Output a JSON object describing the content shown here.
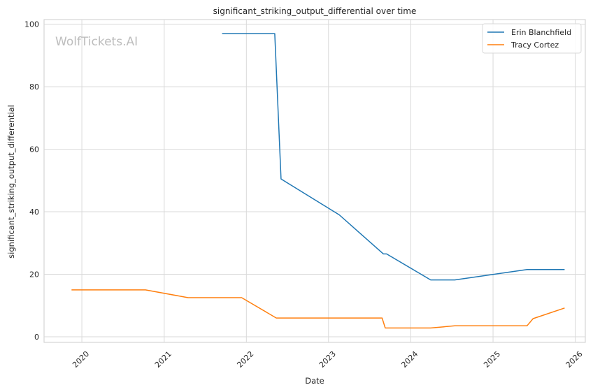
{
  "chart_data": {
    "type": "line",
    "title": "significant_striking_output_differential over time",
    "xlabel": "Date",
    "ylabel": "significant_striking_output_differential",
    "watermark": "WolfTickets.AI",
    "x_ticks": [
      "2020",
      "2021",
      "2022",
      "2023",
      "2024",
      "2025",
      "2026"
    ],
    "y_ticks": [
      0,
      20,
      40,
      60,
      80,
      100
    ],
    "xlim": [
      "2019-07-17",
      "2026-02-15"
    ],
    "ylim": [
      -1.8,
      101.5
    ],
    "grid": true,
    "legend_position": "top-right",
    "series": [
      {
        "name": "Erin Blanchfield",
        "color": "#1f77b4",
        "points": [
          [
            "2021-09-15",
            97
          ],
          [
            "2022-05-07",
            97
          ],
          [
            "2022-06-04",
            50.5
          ],
          [
            "2023-02-18",
            39
          ],
          [
            "2023-09-02",
            26.5
          ],
          [
            "2023-09-16",
            26.5
          ],
          [
            "2024-03-30",
            18.2
          ],
          [
            "2024-07-15",
            18.2
          ],
          [
            "2025-06-01",
            21.5
          ],
          [
            "2025-11-15",
            21.5
          ]
        ]
      },
      {
        "name": "Tracy Cortez",
        "color": "#ff7f0e",
        "points": [
          [
            "2019-11-16",
            15
          ],
          [
            "2020-10-10",
            15
          ],
          [
            "2021-04-17",
            12.5
          ],
          [
            "2021-12-11",
            12.5
          ],
          [
            "2022-05-14",
            6
          ],
          [
            "2023-08-27",
            6
          ],
          [
            "2023-09-10",
            2.8
          ],
          [
            "2024-03-30",
            2.8
          ],
          [
            "2024-07-15",
            3.5
          ],
          [
            "2025-06-01",
            3.5
          ],
          [
            "2025-06-28",
            5.8
          ],
          [
            "2025-11-15",
            9.2
          ]
        ]
      }
    ]
  }
}
